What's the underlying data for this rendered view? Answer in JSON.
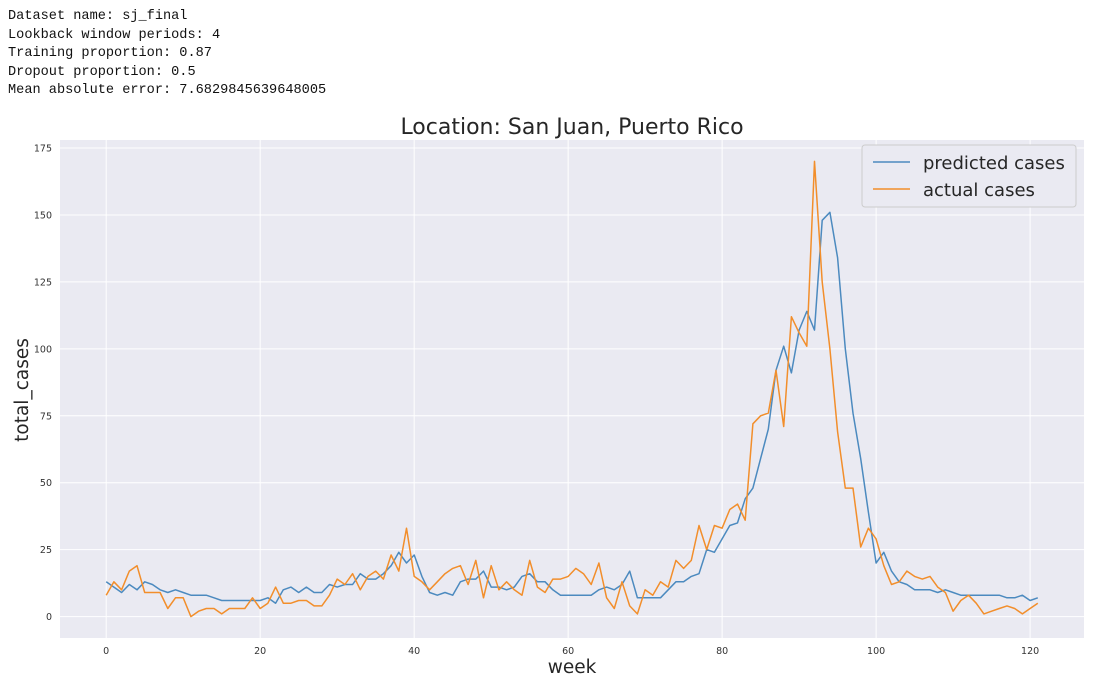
{
  "info": {
    "dataset": "Dataset name: sj_final",
    "lookback": "Lookback window periods: 4",
    "training": "Training proportion: 0.87",
    "dropout": "Dropout proportion: 0.5",
    "mae": "Mean absolute error: 7.6829845639648005"
  },
  "chart_data": {
    "type": "line",
    "title": "Location: San Juan, Puerto Rico",
    "xlabel": "week",
    "ylabel": "total_cases",
    "xlim": [
      -6,
      127
    ],
    "ylim": [
      -8,
      178
    ],
    "xticks": [
      0,
      20,
      40,
      60,
      80,
      100,
      120
    ],
    "yticks": [
      0,
      25,
      50,
      75,
      100,
      125,
      150,
      175
    ],
    "grid": true,
    "legend_position": "top-right",
    "series": [
      {
        "name": "predicted cases",
        "color": "#4c8abf",
        "values": [
          13,
          11,
          9,
          12,
          10,
          13,
          12,
          10,
          9,
          10,
          9,
          8,
          8,
          8,
          7,
          6,
          6,
          6,
          6,
          6,
          6,
          7,
          5,
          10,
          11,
          9,
          11,
          9,
          9,
          12,
          11,
          12,
          12,
          16,
          14,
          14,
          16,
          19,
          24,
          20,
          23,
          15,
          9,
          8,
          9,
          8,
          13,
          14,
          14,
          17,
          11,
          11,
          10,
          11,
          15,
          16,
          13,
          13,
          10,
          8,
          8,
          8,
          8,
          8,
          10,
          11,
          10,
          12,
          17,
          7,
          7,
          7,
          7,
          10,
          13,
          13,
          15,
          16,
          25,
          24,
          29,
          34,
          35,
          44,
          48,
          59,
          70,
          92,
          101,
          91,
          107,
          114,
          107,
          148,
          151,
          134,
          100,
          76,
          59,
          39,
          20,
          24,
          17,
          13,
          12,
          10,
          10,
          10,
          9,
          10,
          9,
          8,
          8,
          8,
          8,
          8,
          8,
          7,
          7,
          8,
          6,
          7
        ]
      },
      {
        "name": "actual cases",
        "color": "#f28e2b",
        "values": [
          8,
          13,
          10,
          17,
          19,
          9,
          9,
          9,
          3,
          7,
          7,
          0,
          2,
          3,
          3,
          1,
          3,
          3,
          3,
          7,
          3,
          5,
          11,
          5,
          5,
          6,
          6,
          4,
          4,
          8,
          14,
          12,
          16,
          10,
          15,
          17,
          14,
          23,
          17,
          33,
          15,
          13,
          10,
          13,
          16,
          18,
          19,
          12,
          21,
          7,
          19,
          10,
          13,
          10,
          8,
          21,
          11,
          9,
          14,
          14,
          15,
          18,
          16,
          12,
          20,
          7,
          3,
          13,
          4,
          1,
          10,
          8,
          13,
          11,
          21,
          18,
          21,
          34,
          25,
          34,
          33,
          40,
          42,
          36,
          72,
          75,
          76,
          92,
          71,
          112,
          106,
          101,
          170,
          125,
          100,
          69,
          48,
          48,
          26,
          33,
          29,
          19,
          12,
          13,
          17,
          15,
          14,
          15,
          11,
          9,
          2,
          6,
          8,
          5,
          1,
          2,
          3,
          4,
          3,
          1,
          3,
          5
        ]
      }
    ]
  }
}
